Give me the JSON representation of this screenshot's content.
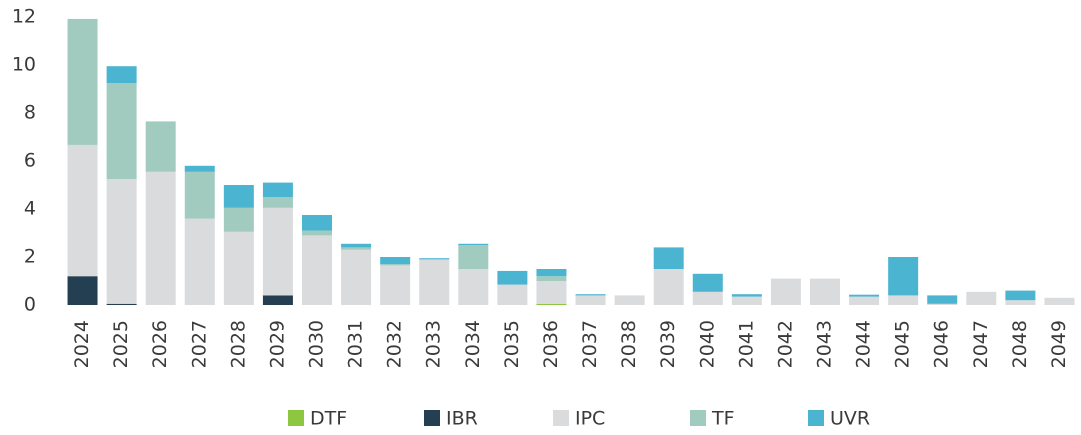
{
  "chart_data": {
    "type": "stacked_bar",
    "categories": [
      "2024",
      "2025",
      "2026",
      "2027",
      "2028",
      "2029",
      "2030",
      "2031",
      "2032",
      "2033",
      "2034",
      "2035",
      "2036",
      "2037",
      "2038",
      "2039",
      "2040",
      "2041",
      "2042",
      "2043",
      "2044",
      "2045",
      "2046",
      "2047",
      "2048",
      "2049"
    ],
    "series": [
      {
        "name": "DTF",
        "color": "#8dc63f",
        "values": [
          0,
          0,
          0,
          0,
          0,
          0,
          0,
          0,
          0,
          0,
          0,
          0,
          0.05,
          0,
          0,
          0,
          0,
          0,
          0,
          0,
          0,
          0,
          0,
          0,
          0,
          0
        ]
      },
      {
        "name": "IBR",
        "color": "#253f52",
        "values": [
          1.2,
          0.05,
          0,
          0,
          0,
          0.4,
          0,
          0,
          0,
          0,
          0,
          0,
          0,
          0,
          0,
          0,
          0,
          0,
          0,
          0,
          0,
          0,
          0,
          0,
          0,
          0
        ]
      },
      {
        "name": "IPC",
        "color": "#d9dbdd",
        "values": [
          5.47,
          5.2,
          5.55,
          3.6,
          3.05,
          3.65,
          2.9,
          2.3,
          1.65,
          1.9,
          1.5,
          0.85,
          0.95,
          0.4,
          0.4,
          1.5,
          0.55,
          0.35,
          1.1,
          1.1,
          0.35,
          0.4,
          0.05,
          0.55,
          0.2,
          0.3
        ]
      },
      {
        "name": "TF",
        "color": "#a2cbbf",
        "values": [
          5.25,
          4.0,
          2.1,
          1.95,
          1.0,
          0.45,
          0.2,
          0.1,
          0.05,
          0,
          1.0,
          0,
          0.2,
          0,
          0,
          0,
          0,
          0,
          0,
          0,
          0,
          0,
          0,
          0,
          0,
          0
        ]
      },
      {
        "name": "UVR",
        "color": "#4ab4d1",
        "values": [
          0,
          0.7,
          0,
          0.25,
          0.95,
          0.6,
          0.65,
          0.15,
          0.3,
          0.05,
          0.05,
          0.57,
          0.3,
          0.05,
          0,
          0.9,
          0.75,
          0.1,
          0,
          0,
          0.08,
          1.6,
          0.35,
          0,
          0.4,
          0
        ]
      }
    ],
    "ylim": [
      0,
      12
    ],
    "yticks": [
      0,
      2,
      4,
      6,
      8,
      10,
      12
    ],
    "grid": false,
    "legend": "bottom"
  }
}
